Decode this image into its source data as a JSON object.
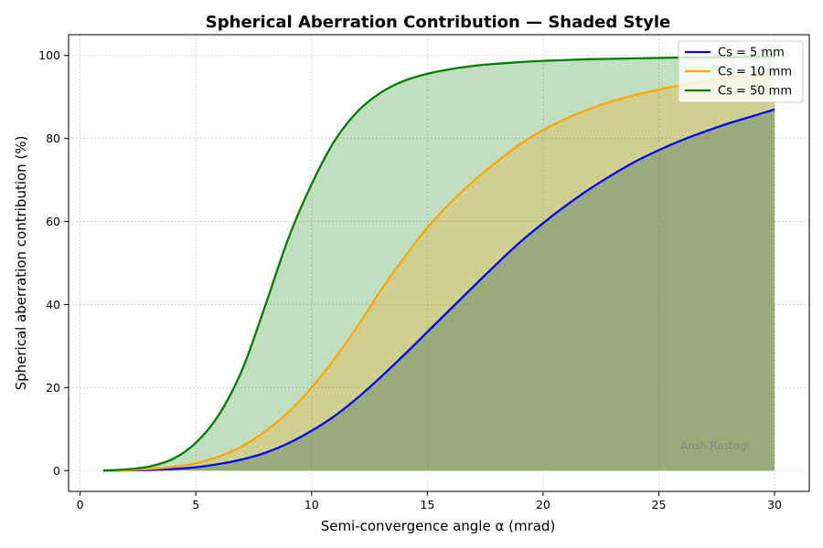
{
  "chart_data": {
    "type": "area",
    "title": "Spherical Aberration Contribution — Shaded Style",
    "xlabel": "Semi-convergence angle α (mrad)",
    "ylabel": "Spherical aberration contribution (%)",
    "xlim": [
      -0.5,
      31.5
    ],
    "ylim": [
      -5,
      105
    ],
    "xticks": [
      0,
      5,
      10,
      15,
      20,
      25,
      30
    ],
    "yticks": [
      0,
      20,
      40,
      60,
      80,
      100
    ],
    "grid": true,
    "legend_position": "top-right",
    "watermark": "Ansh Rastogi",
    "x": [
      1,
      2,
      3,
      4,
      5,
      6,
      7,
      8,
      9,
      10,
      11,
      12,
      13,
      14,
      15,
      16,
      17,
      18,
      19,
      20,
      21,
      22,
      23,
      24,
      25,
      26,
      27,
      28,
      29,
      30
    ],
    "series": [
      {
        "name": "Cs = 5 mm",
        "color": "#0000ff",
        "fill": "#6e8c6b",
        "fill_opacity": 0.55,
        "values": [
          0.01,
          0.06,
          0.16,
          0.4,
          0.8,
          1.6,
          2.7,
          4.3,
          6.6,
          9.6,
          13.2,
          17.6,
          22.6,
          27.9,
          33.4,
          38.9,
          44.4,
          49.8,
          55.0,
          59.6,
          63.9,
          67.8,
          71.3,
          74.5,
          77.2,
          79.6,
          81.7,
          83.6,
          85.3,
          87.0
        ]
      },
      {
        "name": "Cs = 10 mm",
        "color": "#ffa500",
        "fill": "#ffa500",
        "fill_opacity": 0.25,
        "values": [
          0.02,
          0.1,
          0.4,
          0.9,
          1.8,
          3.4,
          5.9,
          9.5,
          14.1,
          20.0,
          27.0,
          34.9,
          43.5,
          51.3,
          58.5,
          64.5,
          69.8,
          74.4,
          78.6,
          82.0,
          84.8,
          87.1,
          89.0,
          90.5,
          91.8,
          92.9,
          93.8,
          94.6,
          95.3,
          95.9
        ]
      },
      {
        "name": "Cs = 50 mm",
        "color": "#008000",
        "fill": "#008000",
        "fill_opacity": 0.25,
        "values": [
          0.03,
          0.3,
          1.0,
          2.8,
          6.7,
          13.5,
          24.3,
          39.8,
          56.0,
          69.0,
          79.5,
          86.6,
          91.1,
          93.9,
          95.6,
          96.7,
          97.5,
          98.0,
          98.4,
          98.7,
          98.9,
          99.1,
          99.2,
          99.3,
          99.4,
          99.5,
          99.55,
          99.6,
          99.65,
          99.7
        ]
      }
    ]
  }
}
